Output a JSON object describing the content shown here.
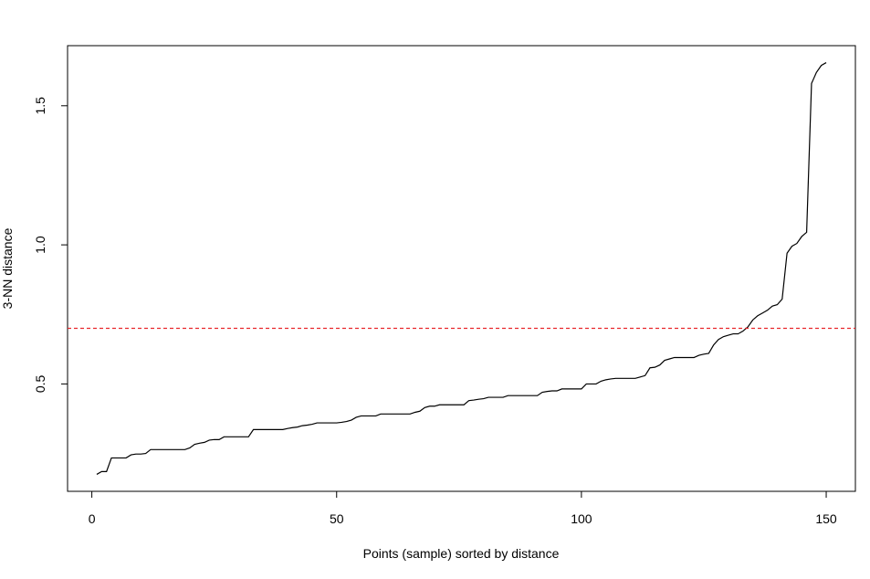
{
  "chart_data": {
    "type": "line",
    "xlabel": "Points (sample) sorted by distance",
    "ylabel": "3-NN distance",
    "x": [
      1,
      2,
      3,
      4,
      5,
      6,
      7,
      8,
      9,
      10,
      11,
      12,
      13,
      14,
      15,
      16,
      17,
      18,
      19,
      20,
      21,
      22,
      23,
      24,
      25,
      26,
      27,
      28,
      29,
      30,
      31,
      32,
      33,
      34,
      35,
      36,
      37,
      38,
      39,
      40,
      41,
      42,
      43,
      44,
      45,
      46,
      47,
      48,
      49,
      50,
      51,
      52,
      53,
      54,
      55,
      56,
      57,
      58,
      59,
      60,
      61,
      62,
      63,
      64,
      65,
      66,
      67,
      68,
      69,
      70,
      71,
      72,
      73,
      74,
      75,
      76,
      77,
      78,
      79,
      80,
      81,
      82,
      83,
      84,
      85,
      86,
      87,
      88,
      89,
      90,
      91,
      92,
      93,
      94,
      95,
      96,
      97,
      98,
      99,
      100,
      101,
      102,
      103,
      104,
      105,
      106,
      107,
      108,
      109,
      110,
      111,
      112,
      113,
      114,
      115,
      116,
      117,
      118,
      119,
      120,
      121,
      122,
      123,
      124,
      125,
      126,
      127,
      128,
      129,
      130,
      131,
      132,
      133,
      134,
      135,
      136,
      137,
      138,
      139,
      140,
      141,
      142,
      143,
      144,
      145,
      146,
      147,
      148,
      149,
      150
    ],
    "series": [
      {
        "color": "#000000",
        "values": [
          0.175,
          0.185,
          0.185,
          0.234,
          0.234,
          0.234,
          0.234,
          0.245,
          0.248,
          0.248,
          0.25,
          0.264,
          0.264,
          0.264,
          0.264,
          0.264,
          0.264,
          0.264,
          0.264,
          0.27,
          0.283,
          0.287,
          0.29,
          0.298,
          0.3,
          0.3,
          0.31,
          0.31,
          0.31,
          0.31,
          0.31,
          0.31,
          0.336,
          0.336,
          0.336,
          0.336,
          0.336,
          0.336,
          0.336,
          0.34,
          0.343,
          0.345,
          0.35,
          0.352,
          0.355,
          0.36,
          0.36,
          0.36,
          0.36,
          0.36,
          0.362,
          0.365,
          0.37,
          0.38,
          0.385,
          0.385,
          0.385,
          0.385,
          0.392,
          0.392,
          0.392,
          0.392,
          0.392,
          0.392,
          0.392,
          0.398,
          0.402,
          0.415,
          0.42,
          0.42,
          0.425,
          0.425,
          0.425,
          0.425,
          0.425,
          0.425,
          0.44,
          0.442,
          0.445,
          0.447,
          0.452,
          0.452,
          0.452,
          0.452,
          0.458,
          0.458,
          0.458,
          0.458,
          0.458,
          0.458,
          0.458,
          0.47,
          0.473,
          0.475,
          0.475,
          0.482,
          0.482,
          0.482,
          0.482,
          0.482,
          0.5,
          0.5,
          0.5,
          0.51,
          0.515,
          0.518,
          0.52,
          0.52,
          0.52,
          0.52,
          0.52,
          0.525,
          0.53,
          0.558,
          0.56,
          0.568,
          0.585,
          0.59,
          0.595,
          0.595,
          0.595,
          0.595,
          0.595,
          0.603,
          0.607,
          0.61,
          0.64,
          0.66,
          0.67,
          0.675,
          0.68,
          0.68,
          0.69,
          0.705,
          0.73,
          0.745,
          0.755,
          0.765,
          0.78,
          0.785,
          0.805,
          0.97,
          0.995,
          1.005,
          1.03,
          1.045,
          1.58,
          1.62,
          1.645,
          1.655
        ]
      }
    ],
    "hline": 0.7,
    "hline_color": "#e8262b",
    "xlim": [
      -4.96,
      155.96
    ],
    "xticks": [
      0,
      50,
      100,
      150
    ],
    "ylim": [
      0.114,
      1.716
    ],
    "yticks": [
      0.5,
      {
        "value": 1,
        "label": "1.0"
      },
      1.5
    ]
  }
}
